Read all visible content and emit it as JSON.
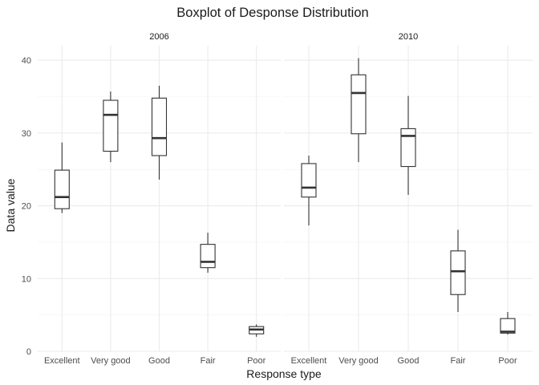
{
  "chart_data": {
    "type": "boxplot",
    "title": "Boxplot of Desponse Distribution",
    "xlabel": "Response type",
    "ylabel": "Data value",
    "ylim": [
      0,
      42
    ],
    "yticks": [
      0,
      10,
      20,
      30,
      40
    ],
    "categories": [
      "Excellent",
      "Very good",
      "Good",
      "Fair",
      "Poor"
    ],
    "grid": true,
    "facets": [
      {
        "label": "2006",
        "boxes": [
          {
            "category": "Excellent",
            "min": 19.0,
            "q1": 19.6,
            "median": 21.2,
            "q3": 24.9,
            "max": 28.7
          },
          {
            "category": "Very good",
            "min": 26.0,
            "q1": 27.5,
            "median": 32.5,
            "q3": 34.5,
            "max": 35.7
          },
          {
            "category": "Good",
            "min": 23.6,
            "q1": 26.9,
            "median": 29.3,
            "q3": 34.8,
            "max": 36.5
          },
          {
            "category": "Fair",
            "min": 10.8,
            "q1": 11.5,
            "median": 12.3,
            "q3": 14.7,
            "max": 16.3
          },
          {
            "category": "Poor",
            "min": 2.0,
            "q1": 2.4,
            "median": 3.0,
            "q3": 3.4,
            "max": 3.7
          }
        ]
      },
      {
        "label": "2010",
        "boxes": [
          {
            "category": "Excellent",
            "min": 17.3,
            "q1": 21.2,
            "median": 22.5,
            "q3": 25.8,
            "max": 26.9
          },
          {
            "category": "Very good",
            "min": 26.0,
            "q1": 29.9,
            "median": 35.5,
            "q3": 38.0,
            "max": 40.3
          },
          {
            "category": "Good",
            "min": 21.5,
            "q1": 25.4,
            "median": 29.6,
            "q3": 30.6,
            "max": 35.1
          },
          {
            "category": "Fair",
            "min": 5.4,
            "q1": 7.8,
            "median": 11.0,
            "q3": 13.8,
            "max": 16.7
          },
          {
            "category": "Poor",
            "min": 2.3,
            "q1": 2.5,
            "median": 2.7,
            "q3": 4.5,
            "max": 5.4
          }
        ]
      }
    ]
  }
}
